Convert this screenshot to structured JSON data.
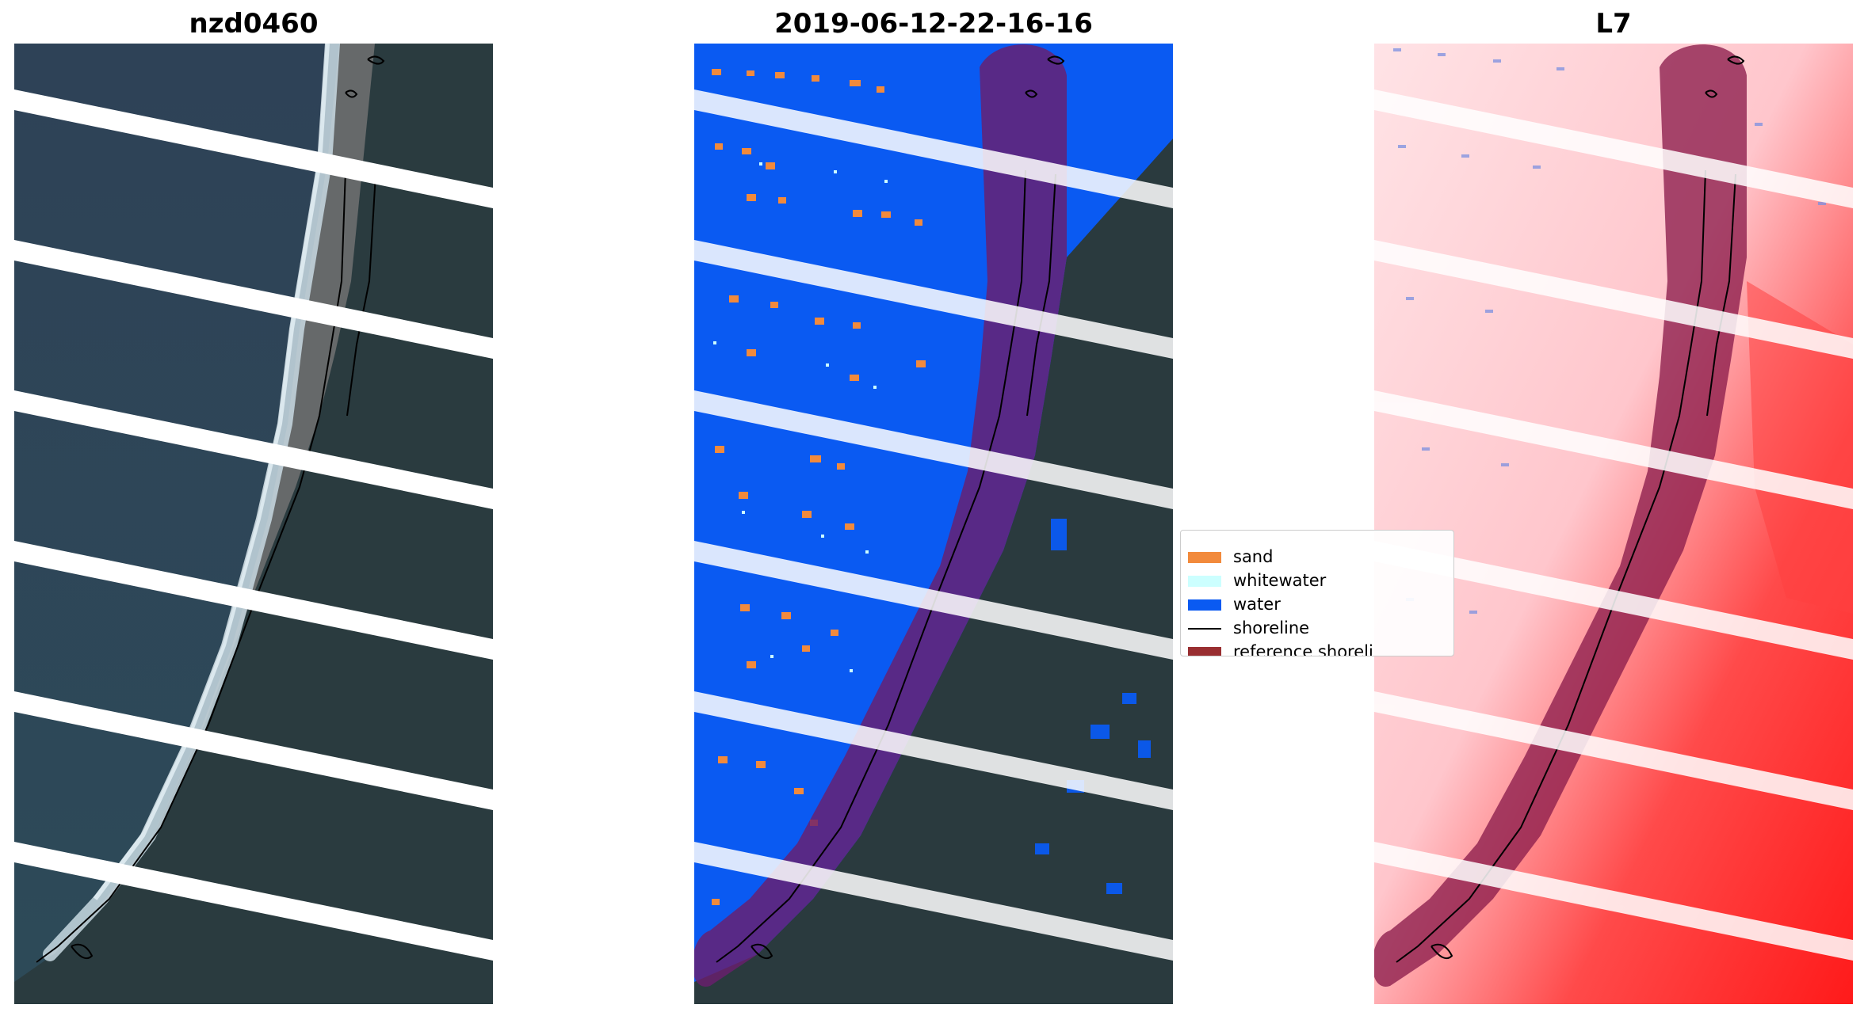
{
  "panels": [
    {
      "title": "nzd0460"
    },
    {
      "title": "2019-06-12-22-16-16"
    },
    {
      "title": "L7"
    }
  ],
  "legend": {
    "items": [
      {
        "label": "sand",
        "color": "#f28a3c",
        "kind": "patch"
      },
      {
        "label": "whitewater",
        "color": "#ccffff",
        "kind": "patch"
      },
      {
        "label": "water",
        "color": "#0a5af2",
        "kind": "patch"
      },
      {
        "label": "shoreline",
        "color": "#000000",
        "kind": "line"
      },
      {
        "label": "reference shoreli",
        "color": "#992e31",
        "kind": "patch"
      }
    ]
  },
  "colors": {
    "ocean": "#2b4258",
    "land": "#2a3a3e",
    "beach": "#6d6e6c",
    "surf": "#c6d8e0",
    "water_class": "#0a5af2",
    "reference_band": "#6a1e6e",
    "heat_light": "#ffd8dc",
    "heat_strong": "#ff2a2a"
  }
}
